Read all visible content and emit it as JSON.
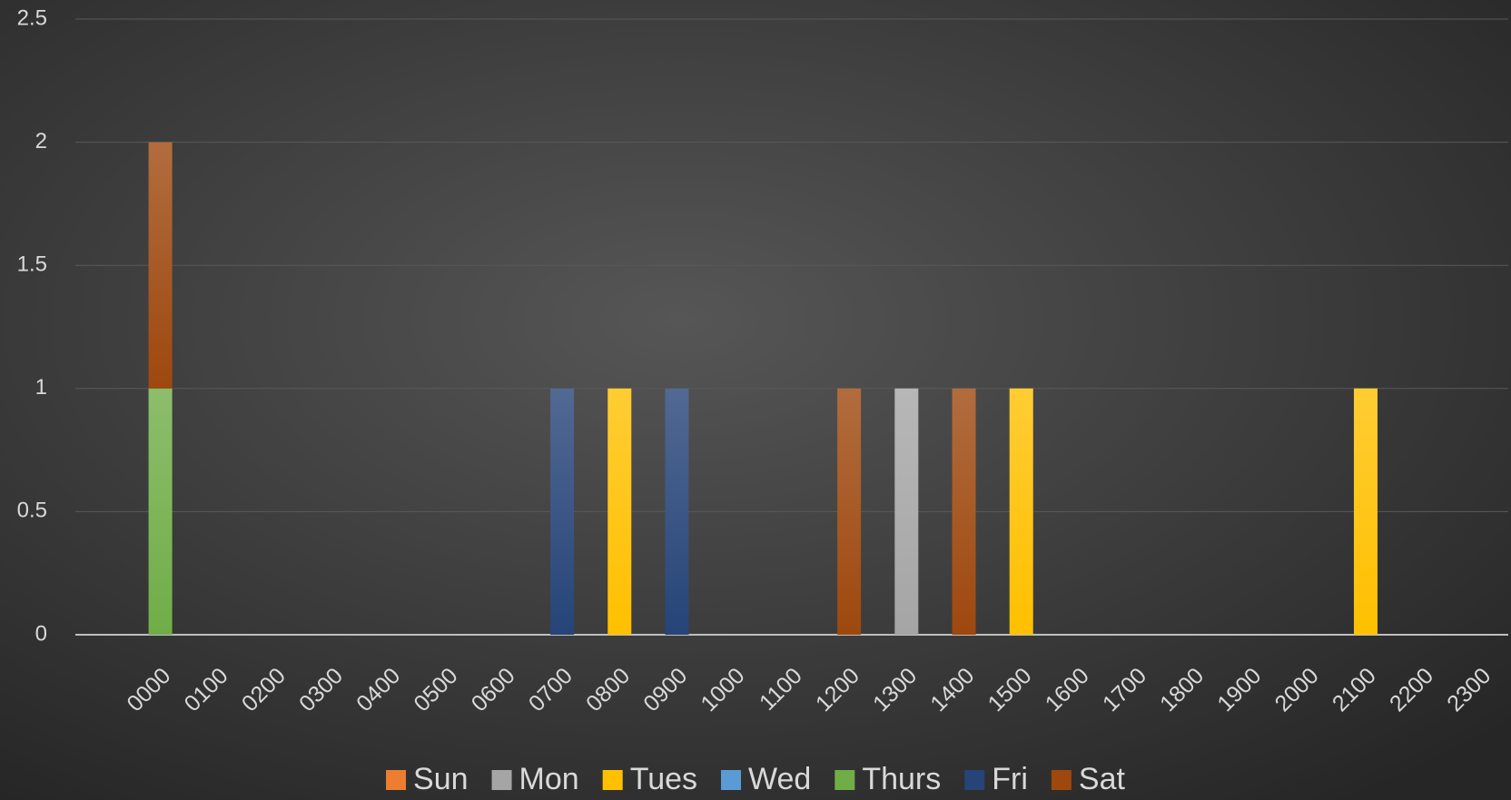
{
  "chart_data": {
    "type": "stacked_bar",
    "categories": [
      "0000",
      "0100",
      "0200",
      "0300",
      "0400",
      "0500",
      "0600",
      "0700",
      "0800",
      "0900",
      "1000",
      "1100",
      "1200",
      "1300",
      "1400",
      "1500",
      "1600",
      "1700",
      "1800",
      "1900",
      "2000",
      "2100",
      "2200",
      "2300"
    ],
    "series": [
      {
        "name": "Sun",
        "color": "#ed7d31",
        "values": [
          0,
          0,
          0,
          0,
          0,
          0,
          0,
          0,
          0,
          0,
          0,
          0,
          0,
          0,
          0,
          0,
          0,
          0,
          0,
          0,
          0,
          0,
          0,
          0
        ]
      },
      {
        "name": "Mon",
        "color": "#a5a5a5",
        "values": [
          0,
          0,
          0,
          0,
          0,
          0,
          0,
          0,
          0,
          0,
          0,
          0,
          0,
          1,
          0,
          0,
          0,
          0,
          0,
          0,
          0,
          0,
          0,
          0
        ]
      },
      {
        "name": "Tues",
        "color": "#ffc000",
        "values": [
          0,
          0,
          0,
          0,
          0,
          0,
          0,
          0,
          1,
          0,
          0,
          0,
          0,
          0,
          0,
          1,
          0,
          0,
          0,
          0,
          0,
          1,
          0,
          0
        ]
      },
      {
        "name": "Wed",
        "color": "#5b9bd5",
        "values": [
          0,
          0,
          0,
          0,
          0,
          0,
          0,
          0,
          0,
          0,
          0,
          0,
          0,
          0,
          0,
          0,
          0,
          0,
          0,
          0,
          0,
          0,
          0,
          0
        ]
      },
      {
        "name": "Thurs",
        "color": "#70ad47",
        "values": [
          1,
          0,
          0,
          0,
          0,
          0,
          0,
          0,
          0,
          0,
          0,
          0,
          0,
          0,
          0,
          0,
          0,
          0,
          0,
          0,
          0,
          0,
          0,
          0
        ]
      },
      {
        "name": "Fri",
        "color": "#264478",
        "values": [
          0,
          0,
          0,
          0,
          0,
          0,
          0,
          1,
          0,
          1,
          0,
          0,
          0,
          0,
          0,
          0,
          0,
          0,
          0,
          0,
          0,
          0,
          0,
          0
        ]
      },
      {
        "name": "Sat",
        "color": "#9e480e",
        "values": [
          1,
          0,
          0,
          0,
          0,
          0,
          0,
          0,
          0,
          0,
          0,
          0,
          1,
          0,
          1,
          0,
          0,
          0,
          0,
          0,
          0,
          0,
          0,
          0
        ]
      }
    ],
    "ylim": [
      0,
      2.5
    ],
    "yticks": [
      0,
      0.5,
      1,
      1.5,
      2,
      2.5
    ],
    "grid": true,
    "legend": "bottom"
  }
}
